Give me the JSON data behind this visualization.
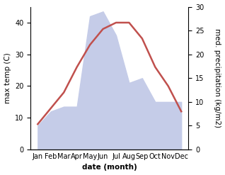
{
  "months": [
    "Jan",
    "Feb",
    "Mar",
    "Apr",
    "May",
    "Jun",
    "Jul",
    "Aug",
    "Sep",
    "Oct",
    "Nov",
    "Dec"
  ],
  "temperature": [
    8,
    13,
    18,
    26,
    33,
    38,
    40,
    40,
    35,
    26,
    20,
    12
  ],
  "precipitation": [
    5,
    8,
    9,
    9,
    28,
    29,
    24,
    14,
    15,
    10,
    10,
    10
  ],
  "temp_color": "#c0504d",
  "precip_fill_color": "#c5cce8",
  "ylabel_left": "max temp (C)",
  "ylabel_right": "med. precipitation (kg/m2)",
  "xlabel": "date (month)",
  "ylim_left": [
    0,
    45
  ],
  "ylim_right": [
    0,
    30
  ],
  "yticks_left": [
    0,
    10,
    20,
    30,
    40
  ],
  "yticks_right": [
    0,
    5,
    10,
    15,
    20,
    25,
    30
  ],
  "background_color": "#ffffff",
  "temp_linewidth": 1.8,
  "label_fontsize": 7.5,
  "tick_fontsize": 7
}
